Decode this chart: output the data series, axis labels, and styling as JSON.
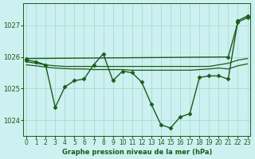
{
  "title": "Graphe pression niveau de la mer (hPa)",
  "bg_color": "#cdf0f0",
  "line_color": "#1a5c1a",
  "grid_color": "#99ddcc",
  "ylim": [
    1023.5,
    1027.7
  ],
  "xlim": [
    -0.3,
    23.3
  ],
  "yticks": [
    1024,
    1025,
    1026,
    1027
  ],
  "xticks": [
    0,
    1,
    2,
    3,
    4,
    5,
    6,
    7,
    8,
    9,
    10,
    11,
    12,
    13,
    14,
    15,
    16,
    17,
    18,
    19,
    20,
    21,
    22,
    23
  ],
  "lines": [
    {
      "x": [
        0,
        1,
        2,
        3,
        4,
        5,
        6,
        7,
        8,
        9,
        10,
        11,
        12,
        13,
        14,
        15,
        16,
        17,
        18,
        19,
        20,
        21,
        22,
        23
      ],
      "y": [
        1025.9,
        1025.85,
        1025.75,
        1024.4,
        1025.05,
        1025.25,
        1025.3,
        1025.75,
        1026.1,
        1025.25,
        1025.55,
        1025.5,
        1025.2,
        1024.5,
        1023.85,
        1023.75,
        1024.1,
        1024.2,
        1025.35,
        1025.4,
        1025.4,
        1025.3,
        1027.15,
        1027.3
      ],
      "marker": "D",
      "markersize": 2.5,
      "linewidth": 1.0
    },
    {
      "x": [
        0,
        21,
        22,
        23
      ],
      "y": [
        1025.95,
        1026.0,
        1027.1,
        1027.25
      ],
      "marker": "D",
      "markersize": 2.5,
      "linewidth": 1.0
    },
    {
      "x": [
        0,
        1,
        2,
        3,
        4,
        5,
        6,
        7,
        8,
        9,
        10,
        11,
        12,
        13,
        14,
        15,
        16,
        17,
        18,
        19,
        20,
        21,
        22,
        23
      ],
      "y": [
        1025.85,
        1025.8,
        1025.75,
        1025.72,
        1025.7,
        1025.7,
        1025.7,
        1025.7,
        1025.7,
        1025.7,
        1025.7,
        1025.7,
        1025.7,
        1025.7,
        1025.7,
        1025.7,
        1025.7,
        1025.7,
        1025.7,
        1025.7,
        1025.75,
        1025.8,
        1025.9,
        1025.95
      ],
      "marker": null,
      "markersize": 0,
      "linewidth": 0.9
    },
    {
      "x": [
        0,
        1,
        2,
        3,
        4,
        5,
        6,
        7,
        8,
        9,
        10,
        11,
        12,
        13,
        14,
        15,
        16,
        17,
        18,
        19,
        20,
        21,
        22,
        23
      ],
      "y": [
        1025.75,
        1025.72,
        1025.68,
        1025.65,
        1025.63,
        1025.62,
        1025.62,
        1025.6,
        1025.6,
        1025.6,
        1025.6,
        1025.58,
        1025.58,
        1025.58,
        1025.58,
        1025.58,
        1025.58,
        1025.58,
        1025.6,
        1025.62,
        1025.65,
        1025.62,
        1025.72,
        1025.78
      ],
      "marker": null,
      "markersize": 0,
      "linewidth": 0.9
    }
  ]
}
